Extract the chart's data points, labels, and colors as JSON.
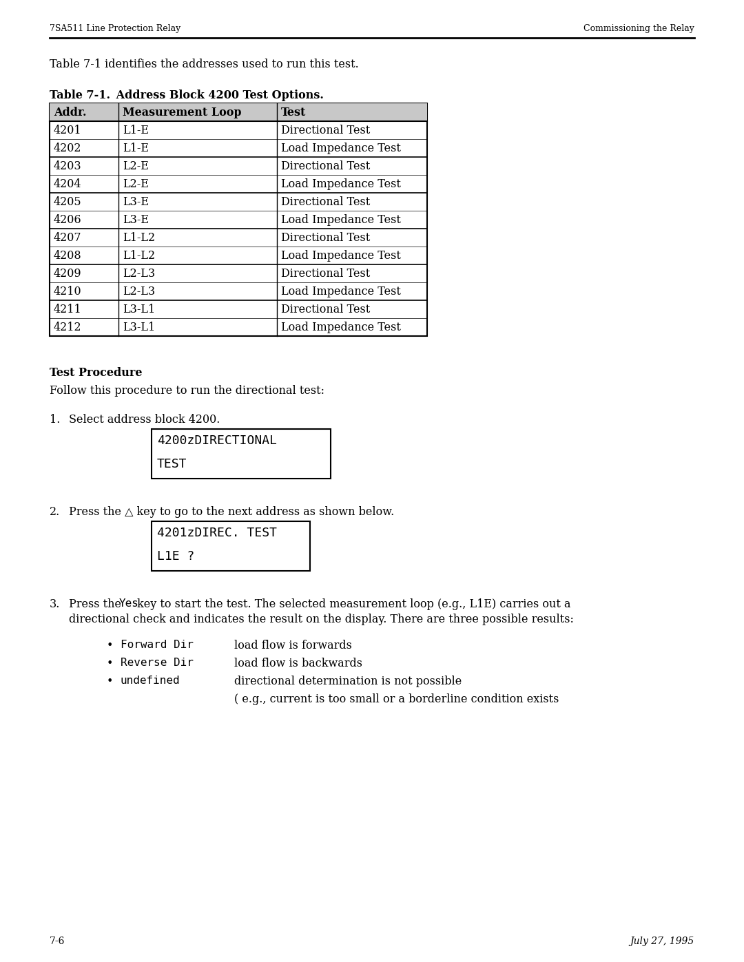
{
  "header_left": "7SA511 Line Protection Relay",
  "header_right": "Commissioning the Relay",
  "intro_text": "Table 7-1 identifies the addresses used to run this test.",
  "table_title_bold": "Table 7-1.",
  "table_title_normal": " Address Block 4200 Test Options.",
  "table_headers": [
    "Addr.",
    "Measurement Loop",
    "Test"
  ],
  "table_rows": [
    [
      "4201",
      "L1-E",
      "Directional Test"
    ],
    [
      "4202",
      "L1-E",
      "Load Impedance Test"
    ],
    [
      "4203",
      "L2-E",
      "Directional Test"
    ],
    [
      "4204",
      "L2-E",
      "Load Impedance Test"
    ],
    [
      "4205",
      "L3-E",
      "Directional Test"
    ],
    [
      "4206",
      "L3-E",
      "Load Impedance Test"
    ],
    [
      "4207",
      "L1-L2",
      "Directional Test"
    ],
    [
      "4208",
      "L1-L2",
      "Load Impedance Test"
    ],
    [
      "4209",
      "L2-L3",
      "Directional Test"
    ],
    [
      "4210",
      "L2-L3",
      "Load Impedance Test"
    ],
    [
      "4211",
      "L3-L1",
      "Directional Test"
    ],
    [
      "4212",
      "L3-L1",
      "Load Impedance Test"
    ]
  ],
  "section_title": "Test Procedure",
  "section_intro": "Follow this procedure to run the directional test:",
  "step1_text": "Select address block 4200.",
  "box1_lines": [
    "4200zDIRECTIONAL",
    "TEST"
  ],
  "step2_text": "Press the △ key to go to the next address as shown below.",
  "box2_lines": [
    "4201zDIREC. TEST",
    "L1E ?"
  ],
  "step3_line1_pre": "Press the ",
  "step3_line1_yes": "Yes",
  "step3_line1_post": "key to start the test. The selected measurement loop (e.g., L1E) carries out a",
  "step3_line2": "directional check and indicates the result on the display. There are three possible results:",
  "bullets": [
    [
      "Forward Dir",
      "load flow is forwards"
    ],
    [
      "Reverse Dir",
      "load flow is backwards"
    ],
    [
      "undefined",
      "directional determination is not possible"
    ]
  ],
  "bullet_extra": "( e.g., current is too small or a borderline condition exists",
  "footer_left": "7-6",
  "footer_right": "July 27, 1995"
}
